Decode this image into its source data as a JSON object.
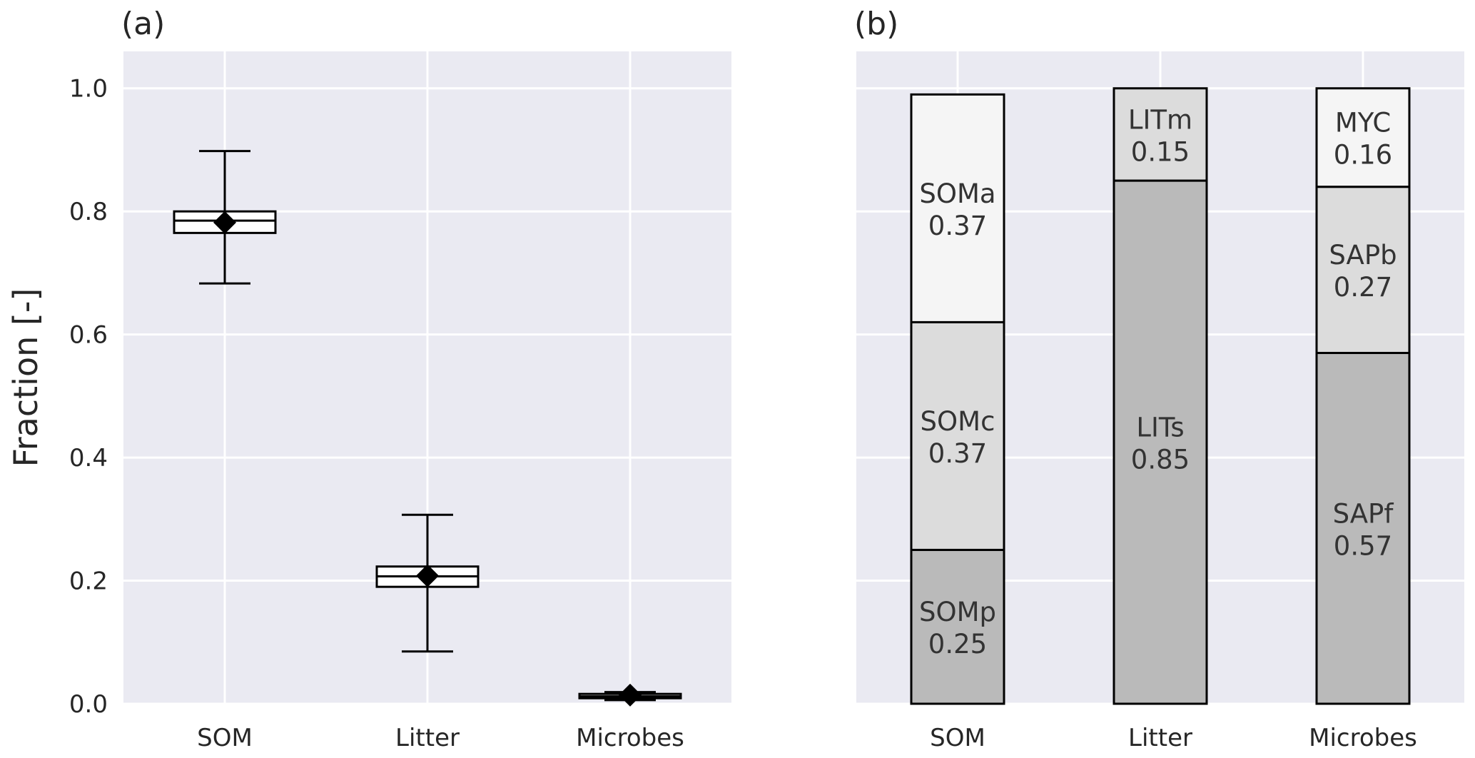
{
  "chart_data": [
    {
      "type": "box",
      "panel_label": "(a)",
      "title": "",
      "xlabel": "",
      "ylabel": "Fraction [-]",
      "categories": [
        "SOM",
        "Litter",
        "Microbes"
      ],
      "ylim": [
        0,
        1.06
      ],
      "yticks": [
        "0.0",
        "0.2",
        "0.4",
        "0.6",
        "0.8",
        "1.0"
      ],
      "grid": true,
      "boxes": [
        {
          "category": "SOM",
          "whisker_low": 0.683,
          "q1": 0.765,
          "median": 0.785,
          "q3": 0.8,
          "whisker_high": 0.898,
          "mean": 0.782
        },
        {
          "category": "Litter",
          "whisker_low": 0.085,
          "q1": 0.19,
          "median": 0.207,
          "q3": 0.223,
          "whisker_high": 0.307,
          "mean": 0.208
        },
        {
          "category": "Microbes",
          "whisker_low": 0.006,
          "q1": 0.009,
          "median": 0.012,
          "q3": 0.016,
          "whisker_high": 0.019,
          "mean": 0.014
        }
      ]
    },
    {
      "type": "stacked_bar",
      "panel_label": "(b)",
      "title": "",
      "xlabel": "",
      "ylabel": "",
      "categories": [
        "SOM",
        "Litter",
        "Microbes"
      ],
      "ylim": [
        0,
        1.06
      ],
      "grid": true,
      "stacks": [
        {
          "category": "SOM",
          "segments": [
            {
              "name": "SOMp",
              "value": 0.25,
              "label": "0.25",
              "color": "#bababa"
            },
            {
              "name": "SOMc",
              "value": 0.37,
              "label": "0.37",
              "color": "#dcdcdc"
            },
            {
              "name": "SOMa",
              "value": 0.37,
              "label": "0.37",
              "color": "#f5f5f5"
            }
          ]
        },
        {
          "category": "Litter",
          "segments": [
            {
              "name": "LITs",
              "value": 0.85,
              "label": "0.85",
              "color": "#bababa"
            },
            {
              "name": "LITm",
              "value": 0.15,
              "label": "0.15",
              "color": "#dcdcdc"
            }
          ]
        },
        {
          "category": "Microbes",
          "segments": [
            {
              "name": "SAPf",
              "value": 0.57,
              "label": "0.57",
              "color": "#bababa"
            },
            {
              "name": "SAPb",
              "value": 0.27,
              "label": "0.27",
              "color": "#dcdcdc"
            },
            {
              "name": "MYC",
              "value": 0.16,
              "label": "0.16",
              "color": "#f5f5f5"
            }
          ]
        }
      ]
    }
  ],
  "colors": {
    "plot_background": "#eaeaf2",
    "grid": "#ffffff",
    "box_fill": "#ffffff",
    "stroke": "#000000"
  }
}
